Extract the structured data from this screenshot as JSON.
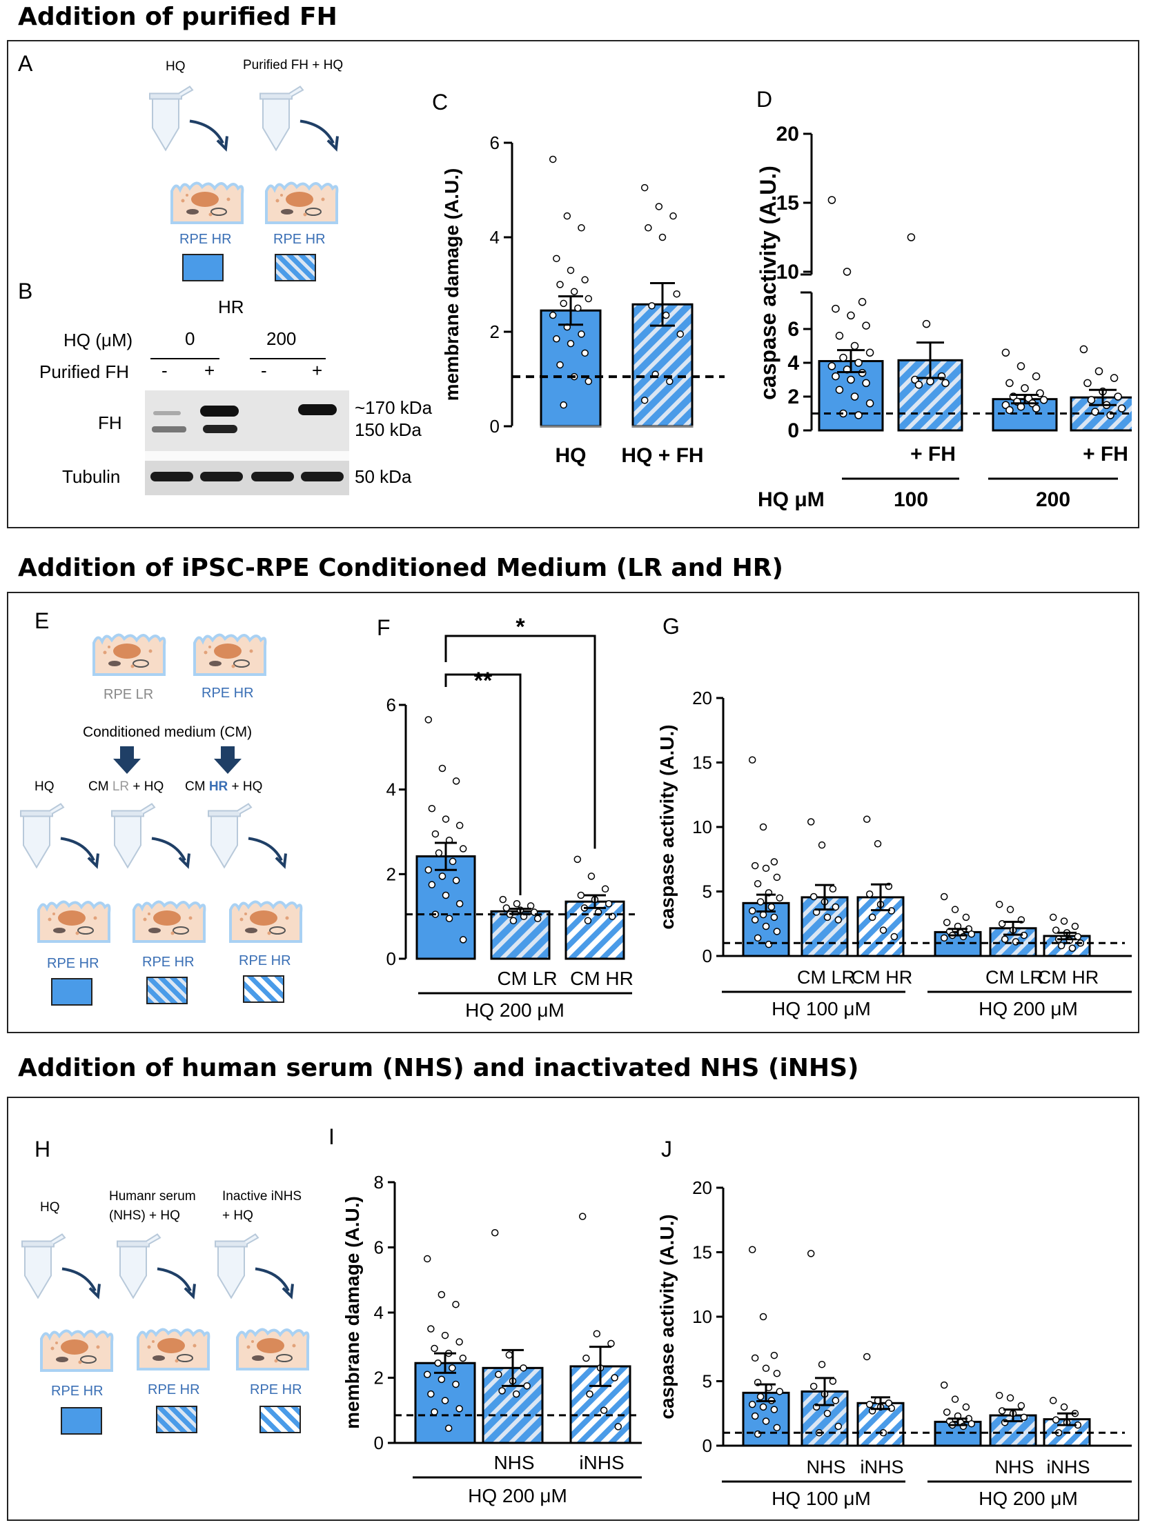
{
  "sections": [
    {
      "title": "Addition of purified FH"
    },
    {
      "title": "Addition of iPSC-RPE Conditioned Medium (LR and HR)"
    },
    {
      "title": "Addition of human serum (NHS) and inactivated NHS (iNHS)"
    }
  ],
  "panelA": {
    "letter": "A",
    "col1_top": "HQ",
    "col2_top": "Purified FH + HQ",
    "cell1": "RPE HR",
    "cell2": "RPE HR"
  },
  "panelB": {
    "letter": "B",
    "group": "HR",
    "hq_label": "HQ (μM)",
    "hq_0": "0",
    "hq_200": "200",
    "fh_label": "Purified FH",
    "minus": "-",
    "plus": "+",
    "row_fh": "FH",
    "row_tub": "Tubulin",
    "kda_170": "~170 kDa",
    "kda_150": "150 kDa",
    "kda_50": "50 kDa"
  },
  "panelE": {
    "letter": "E",
    "lr": "RPE LR",
    "hr": "RPE HR",
    "cm": "Conditioned  medium (CM)",
    "t1": "HQ",
    "t2a": "CM ",
    "t2b": "LR",
    "t2c": " + HQ",
    "t3a": "CM ",
    "t3b": "HR",
    "t3c": " + HQ",
    "cell1": "RPE HR",
    "cell2": "RPE HR",
    "cell3": "RPE HR"
  },
  "panelH": {
    "letter": "H",
    "t1": "HQ",
    "t2a": "Humanr serum",
    "t2b": "(NHS) + HQ",
    "t3a": "Inactive iNHS",
    "t3b": "+ HQ",
    "cell1": "RPE HR",
    "cell2": "RPE HR",
    "cell3": "RPE HR"
  },
  "chart_data": [
    {
      "id": "C",
      "type": "bar",
      "ylabel": "membrane damage (A.U.)",
      "ylim": [
        0,
        6
      ],
      "yticks": [
        0,
        2,
        4,
        6
      ],
      "reference_line": 1.05,
      "bars": [
        {
          "label": "HQ",
          "value": 2.45,
          "sem": 0.3,
          "pattern": "solid",
          "points": [
            5.65,
            4.45,
            4.2,
            3.55,
            3.3,
            3.1,
            3.0,
            2.85,
            2.7,
            2.6,
            2.5,
            2.35,
            2.1,
            1.95,
            1.85,
            1.75,
            1.55,
            1.3,
            1.05,
            0.95,
            0.45
          ]
        },
        {
          "label": "HQ + FH",
          "value": 2.58,
          "sem": 0.45,
          "pattern": "narrow",
          "points": [
            5.05,
            4.65,
            4.45,
            4.2,
            4.0,
            2.8,
            2.55,
            2.35,
            1.95,
            1.1,
            0.95,
            0.55
          ]
        }
      ]
    },
    {
      "id": "D",
      "type": "bar",
      "ylabel": "caspase activity (A.U.)",
      "axis_break": true,
      "yticks": [
        0,
        2,
        4,
        6,
        10,
        15,
        20
      ],
      "reference_line": 1.0,
      "xtick_labels": [
        "",
        "+ FH",
        "",
        "+ FH"
      ],
      "group_prefix": "HQ μM",
      "groups": [
        "100",
        "200"
      ],
      "bars": [
        {
          "value": 4.1,
          "sem": 0.65,
          "pattern": "solid",
          "points": [
            15.2,
            10.0,
            7.6,
            7.2,
            6.8,
            6.2,
            5.6,
            5.0,
            4.6,
            4.3,
            4.0,
            3.8,
            3.6,
            3.4,
            3.2,
            3.0,
            2.8,
            2.4,
            2.0,
            1.6,
            1.0,
            0.9
          ]
        },
        {
          "value": 4.15,
          "sem": 1.05,
          "pattern": "narrow",
          "points": [
            12.5,
            6.3,
            3.2,
            3.0,
            2.9,
            2.8,
            2.7
          ]
        },
        {
          "value": 1.85,
          "sem": 0.25,
          "pattern": "solid",
          "points": [
            4.6,
            3.8,
            3.2,
            2.8,
            2.5,
            2.2,
            2.0,
            1.9,
            1.8,
            1.7,
            1.6,
            1.5,
            1.4,
            1.3,
            1.2
          ]
        },
        {
          "value": 1.95,
          "sem": 0.45,
          "pattern": "narrow",
          "points": [
            4.8,
            3.5,
            3.1,
            2.8,
            2.3,
            2.0,
            1.8,
            1.5,
            1.3,
            1.1,
            0.9
          ]
        }
      ]
    },
    {
      "id": "F",
      "type": "bar",
      "ylabel": "membrane damage (A.U.)",
      "ylim": [
        0,
        6
      ],
      "yticks": [
        0,
        2,
        4,
        6
      ],
      "reference_line": 1.05,
      "xtick_labels": [
        "",
        "CM LR",
        "CM HR"
      ],
      "group_label": "HQ 200 μM",
      "significance": [
        {
          "from": 0,
          "to": 1,
          "label": "**"
        },
        {
          "from": 0,
          "to": 2,
          "label": "*"
        }
      ],
      "bars": [
        {
          "value": 2.42,
          "sem": 0.32,
          "pattern": "solid",
          "points": [
            5.65,
            4.5,
            4.2,
            3.55,
            3.3,
            3.15,
            2.95,
            2.8,
            2.6,
            2.5,
            2.3,
            2.1,
            1.95,
            1.85,
            1.75,
            1.5,
            1.3,
            1.05,
            0.95,
            0.45
          ]
        },
        {
          "value": 1.12,
          "sem": 0.06,
          "pattern": "narrow",
          "points": [
            1.4,
            1.3,
            1.25,
            1.2,
            1.15,
            1.1,
            1.05,
            1.0,
            0.95,
            0.9
          ]
        },
        {
          "value": 1.35,
          "sem": 0.15,
          "pattern": "wide",
          "points": [
            2.35,
            1.95,
            1.65,
            1.5,
            1.4,
            1.3,
            1.2,
            1.1,
            1.0,
            0.9
          ]
        }
      ]
    },
    {
      "id": "G",
      "type": "bar",
      "ylabel": "caspase activity (A.U.)",
      "ylim": [
        0,
        20
      ],
      "yticks": [
        0,
        5,
        10,
        15,
        20
      ],
      "reference_line": 1.0,
      "xtick_labels": [
        "",
        "CM LR",
        "CM HR",
        "",
        "CM LR",
        "CM HR"
      ],
      "groups": [
        "HQ 100 μM",
        "HQ 200 μM"
      ],
      "bars": [
        {
          "value": 4.1,
          "sem": 0.65,
          "pattern": "solid",
          "points": [
            15.2,
            10.0,
            7.3,
            7.0,
            6.8,
            6.1,
            5.6,
            4.9,
            4.5,
            4.2,
            3.8,
            3.5,
            3.2,
            3.0,
            2.8,
            2.3,
            1.9,
            1.4,
            0.9
          ]
        },
        {
          "value": 4.55,
          "sem": 0.95,
          "pattern": "narrow",
          "points": [
            10.4,
            8.6,
            5.2,
            4.6,
            4.2,
            3.8,
            3.4,
            3.0,
            2.8
          ]
        },
        {
          "value": 4.55,
          "sem": 1.0,
          "pattern": "wide",
          "points": [
            10.6,
            8.7,
            5.4,
            4.8,
            4.0,
            3.5,
            3.0,
            2.0,
            1.5
          ]
        },
        {
          "value": 1.85,
          "sem": 0.25,
          "pattern": "solid",
          "points": [
            4.6,
            3.6,
            3.0,
            2.6,
            2.3,
            2.1,
            1.9,
            1.8,
            1.7,
            1.6,
            1.5,
            1.4
          ]
        },
        {
          "value": 2.15,
          "sem": 0.5,
          "pattern": "narrow",
          "points": [
            4.0,
            3.6,
            2.8,
            2.5,
            2.0,
            1.6,
            1.3,
            1.1
          ]
        },
        {
          "value": 1.55,
          "sem": 0.25,
          "pattern": "wide",
          "points": [
            3.0,
            2.7,
            2.3,
            2.0,
            1.8,
            1.5,
            1.3,
            1.2,
            1.0,
            0.8,
            0.6
          ]
        }
      ]
    },
    {
      "id": "I",
      "type": "bar",
      "ylabel": "membrane damage (A.U.)",
      "ylim": [
        0,
        8
      ],
      "yticks": [
        0,
        2,
        4,
        6,
        8
      ],
      "reference_line": 0.85,
      "xtick_labels": [
        "",
        "NHS",
        "iNHS"
      ],
      "group_label": "HQ 200 μM",
      "bars": [
        {
          "value": 2.45,
          "sem": 0.3,
          "pattern": "solid",
          "points": [
            5.65,
            4.55,
            4.25,
            3.5,
            3.3,
            3.1,
            2.9,
            2.75,
            2.6,
            2.45,
            2.3,
            2.1,
            1.95,
            1.8,
            1.5,
            1.3,
            1.05,
            0.95,
            0.45
          ]
        },
        {
          "value": 2.3,
          "sem": 0.55,
          "pattern": "narrow",
          "points": [
            6.45,
            2.7,
            2.3,
            2.1,
            1.9,
            1.75,
            1.6,
            1.5
          ]
        },
        {
          "value": 2.35,
          "sem": 0.6,
          "pattern": "wide",
          "points": [
            6.95,
            3.35,
            3.05,
            2.6,
            2.3,
            2.0,
            1.5,
            1.0,
            0.5
          ]
        }
      ]
    },
    {
      "id": "J",
      "type": "bar",
      "ylabel": "caspase activity (A.U.)",
      "ylim": [
        0,
        20
      ],
      "yticks": [
        0,
        5,
        10,
        15,
        20
      ],
      "reference_line": 1.0,
      "xtick_labels": [
        "",
        "NHS",
        "iNHS",
        "",
        "NHS",
        "iNHS"
      ],
      "groups": [
        "HQ 100 μM",
        "HQ 200 μM"
      ],
      "bars": [
        {
          "value": 4.1,
          "sem": 0.65,
          "pattern": "solid",
          "points": [
            15.2,
            10.0,
            7.0,
            6.8,
            6.0,
            5.6,
            4.9,
            4.5,
            4.2,
            3.8,
            3.5,
            3.2,
            3.0,
            2.8,
            2.3,
            1.9,
            1.4,
            0.9
          ]
        },
        {
          "value": 4.2,
          "sem": 1.05,
          "pattern": "narrow",
          "points": [
            14.9,
            6.3,
            5.0,
            4.6,
            4.0,
            3.5,
            3.0,
            2.5,
            1.5,
            1.0
          ]
        },
        {
          "value": 3.3,
          "sem": 0.45,
          "pattern": "wide",
          "points": [
            6.9,
            3.5,
            3.3,
            3.2,
            3.0,
            2.9,
            2.7,
            1.0
          ]
        },
        {
          "value": 1.85,
          "sem": 0.25,
          "pattern": "solid",
          "points": [
            4.7,
            3.6,
            3.0,
            2.6,
            2.3,
            2.1,
            1.9,
            1.8,
            1.7,
            1.6,
            1.5
          ]
        },
        {
          "value": 2.35,
          "sem": 0.45,
          "pattern": "narrow",
          "points": [
            3.9,
            3.7,
            3.1,
            2.7,
            2.5,
            2.2,
            1.8
          ]
        },
        {
          "value": 2.05,
          "sem": 0.45,
          "pattern": "wide",
          "points": [
            3.5,
            3.0,
            2.5,
            2.0,
            1.8,
            1.6,
            1.0
          ]
        }
      ]
    }
  ],
  "colors": {
    "bar_fill": "#4a9be8",
    "stripe_narrow": "#dbe6f3",
    "stripe_wide": "#ffffff",
    "cell_label": "#3a6fb5",
    "arrow_dark": "#1f3f66"
  }
}
